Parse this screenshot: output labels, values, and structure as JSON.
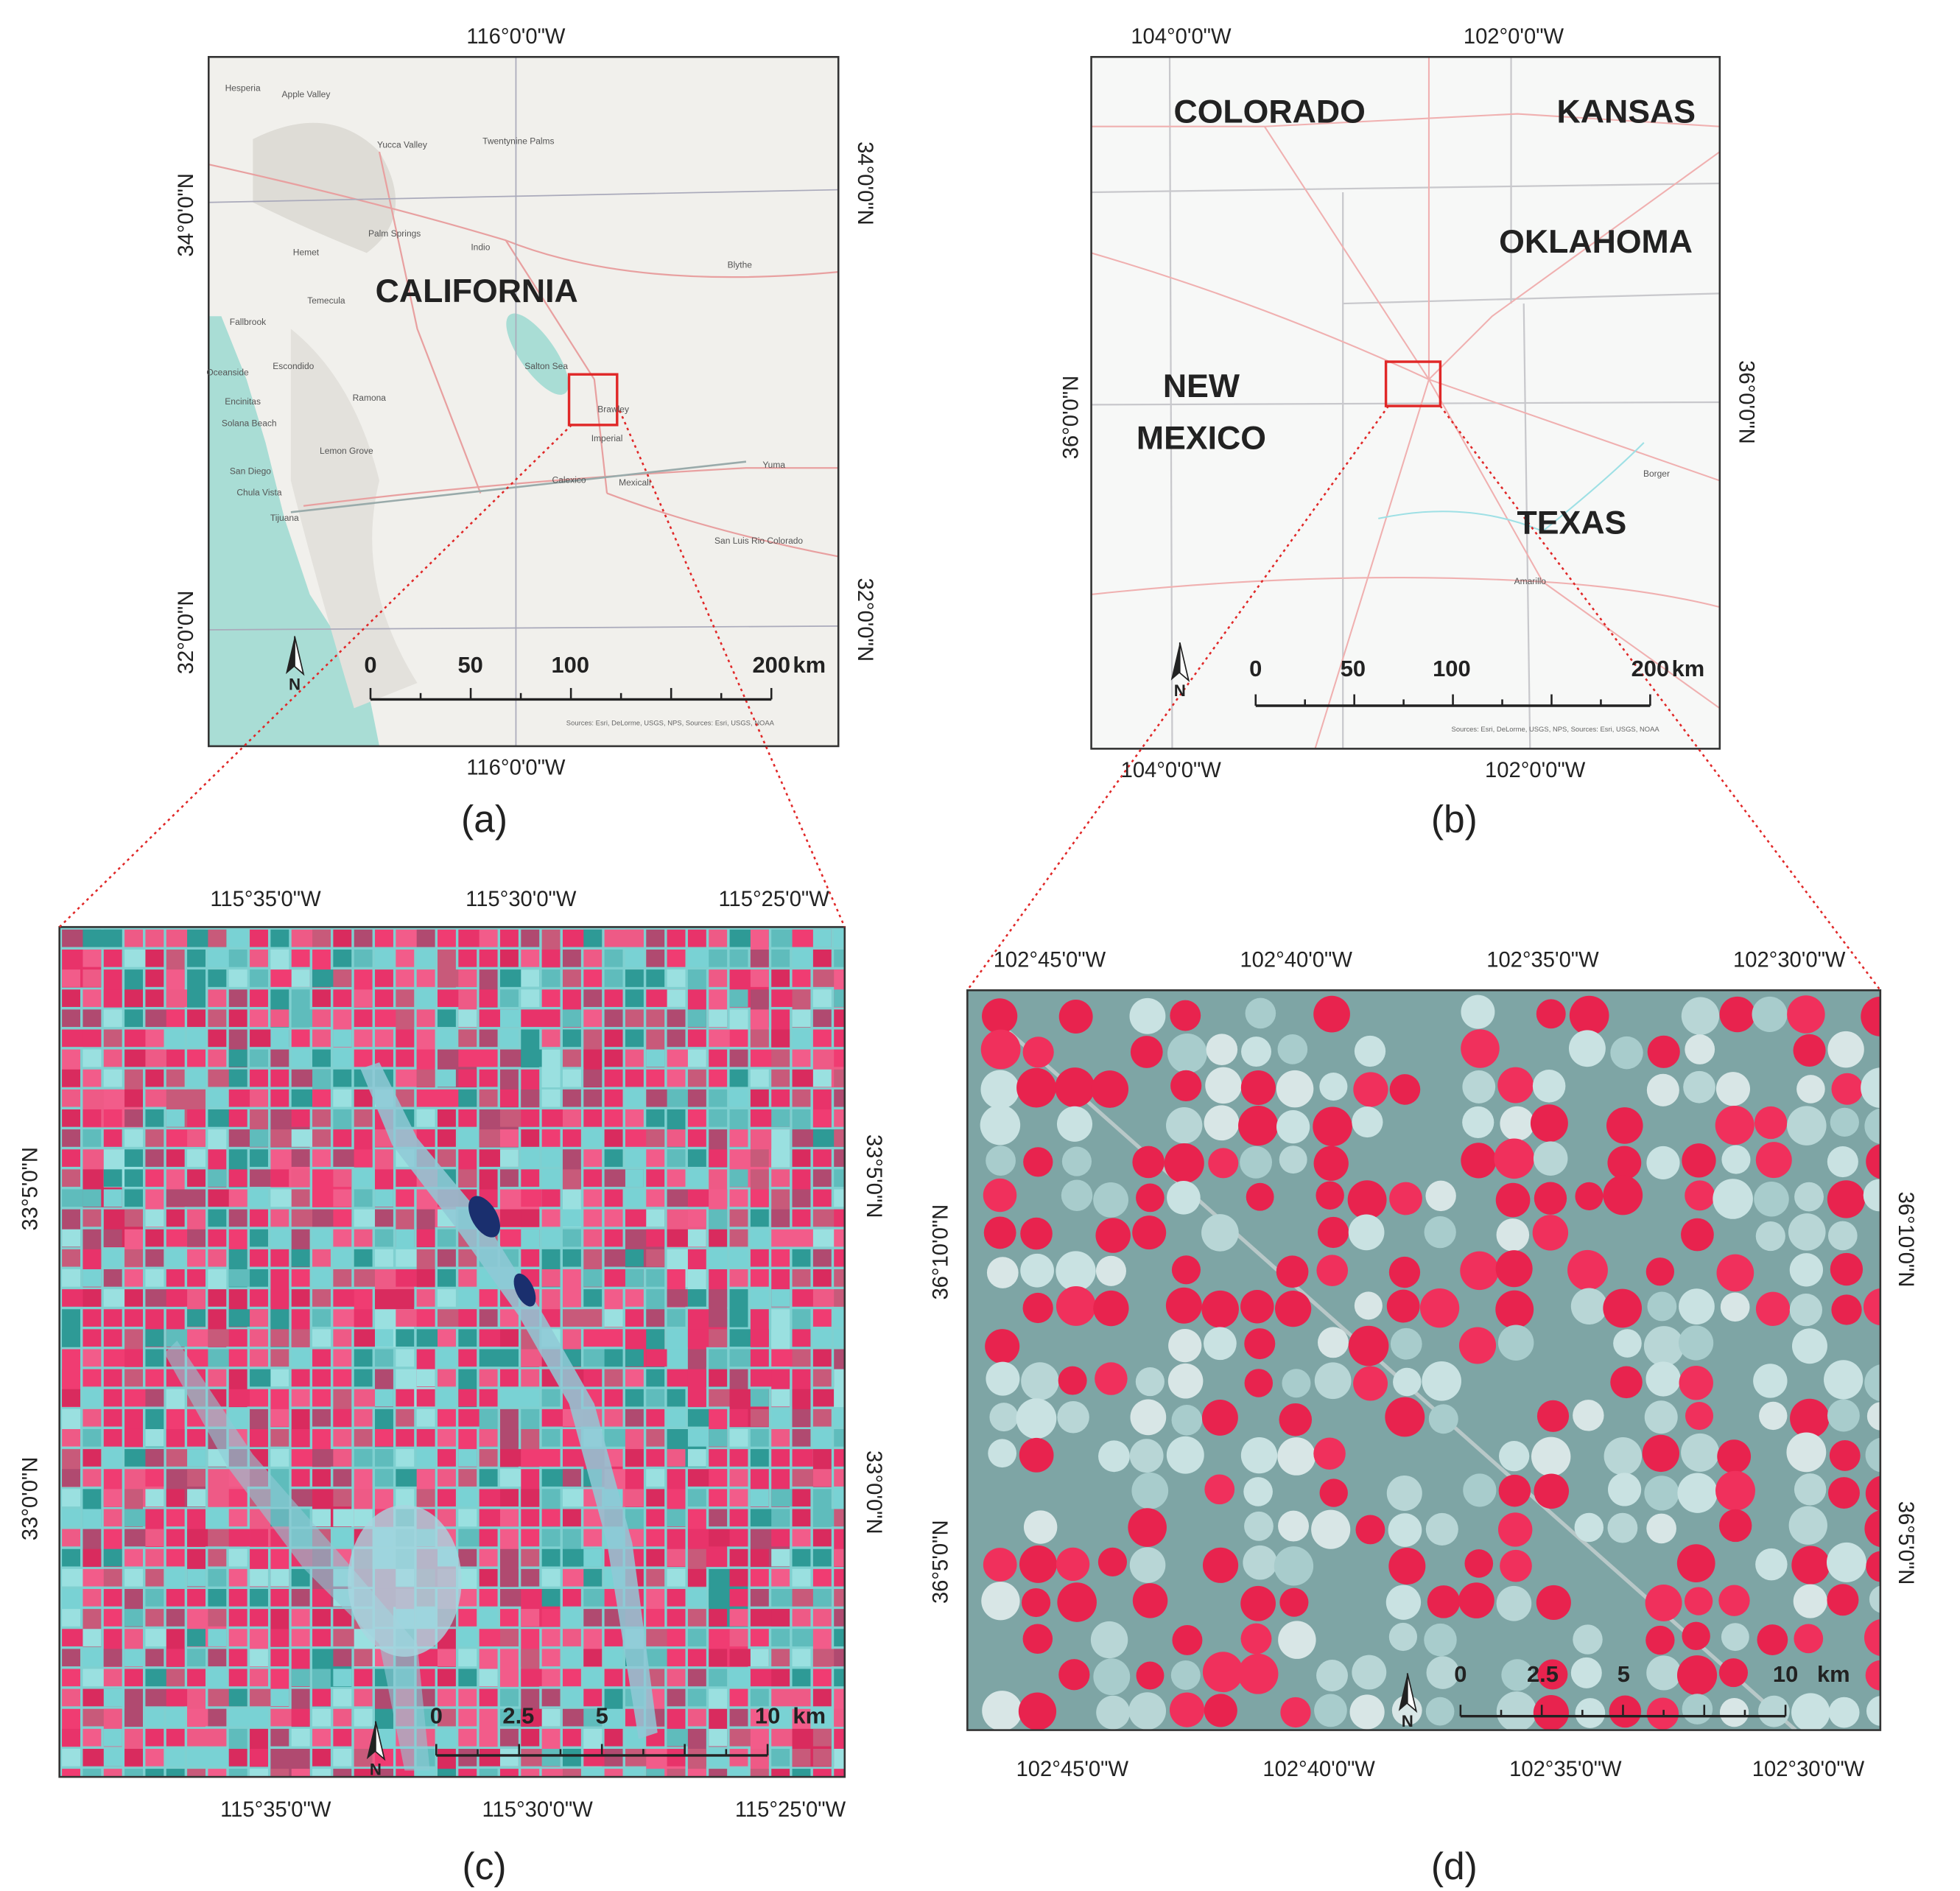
{
  "panels": [
    {
      "caption": "(a)",
      "top_labels": [
        "116°0'0\"W"
      ],
      "bottom_labels": [
        "116°0'0\"W"
      ],
      "left_labels": [
        "34°0'0\"N",
        "32°0'0\"N"
      ],
      "right_labels": [
        "34°0'0\"N",
        "32°0'0\"N"
      ],
      "place_labels": [
        "CALIFORNIA"
      ],
      "small_labels": [
        "Hesperia",
        "Apple Valley",
        "Yucca Valley",
        "Twentynine Palms",
        "Hemet",
        "Palm Springs",
        "Indio",
        "Blythe",
        "Temecula",
        "Fallbrook",
        "Oceanside",
        "Escondido",
        "Encinitas",
        "Solana Beach",
        "Ramona",
        "Lemon Grove",
        "San Diego",
        "Chula Vista",
        "Tijuana",
        "Salton Sea",
        "Brawley",
        "Imperial",
        "Calexico",
        "Mexicali",
        "Yuma",
        "San Luis Rio Colorado"
      ],
      "scale_bar": {
        "ticks": [
          "0",
          "50",
          "100",
          "200"
        ],
        "unit": "km"
      },
      "north": "N",
      "attribution": "Sources: Esri, DeLorme, USGS, NPS, Sources: Esri, USGS, NOAA"
    },
    {
      "caption": "(b)",
      "top_labels": [
        "104°0'0\"W",
        "102°0'0\"W"
      ],
      "bottom_labels": [
        "104°0'0\"W",
        "102°0'0\"W"
      ],
      "left_labels": [
        "36°0'0\"N"
      ],
      "right_labels": [
        "36°0'0\"N"
      ],
      "place_labels": [
        "COLORADO",
        "KANSAS",
        "OKLAHOMA",
        "NEW",
        "MEXICO",
        "TEXAS"
      ],
      "small_labels": [
        "Borger",
        "Amarillo"
      ],
      "scale_bar": {
        "ticks": [
          "0",
          "50",
          "100",
          "200"
        ],
        "unit": "km"
      },
      "north": "N",
      "attribution": "Sources: Esri, DeLorme, USGS, NPS, Sources: Esri, USGS, NOAA"
    },
    {
      "caption": "(c)",
      "top_labels": [
        "115°35'0\"W",
        "115°30'0\"W",
        "115°25'0\"W"
      ],
      "bottom_labels": [
        "115°35'0\"W",
        "115°30'0\"W",
        "115°25'0\"W"
      ],
      "left_labels": [
        "33°5'0\"N",
        "33°0'0\"N"
      ],
      "right_labels": [
        "33°5'0\"N",
        "33°0'0\"N"
      ],
      "place_labels": [],
      "small_labels": [],
      "scale_bar": {
        "ticks": [
          "0",
          "2.5",
          "5",
          "10"
        ],
        "unit": "km"
      },
      "north": "N"
    },
    {
      "caption": "(d)",
      "top_labels": [
        "102°45'0\"W",
        "102°40'0\"W",
        "102°35'0\"W",
        "102°30'0\"W"
      ],
      "bottom_labels": [
        "102°45'0\"W",
        "102°40'0\"W",
        "102°35'0\"W",
        "102°30'0\"W"
      ],
      "left_labels": [
        "36°10'0\"N",
        "36°5'0\"N"
      ],
      "right_labels": [
        "36°10'0\"N",
        "36°5'0\"N"
      ],
      "place_labels": [],
      "small_labels": [],
      "scale_bar": {
        "ticks": [
          "0",
          "2.5",
          "5",
          "10"
        ],
        "unit": "km"
      },
      "north": "N"
    }
  ]
}
